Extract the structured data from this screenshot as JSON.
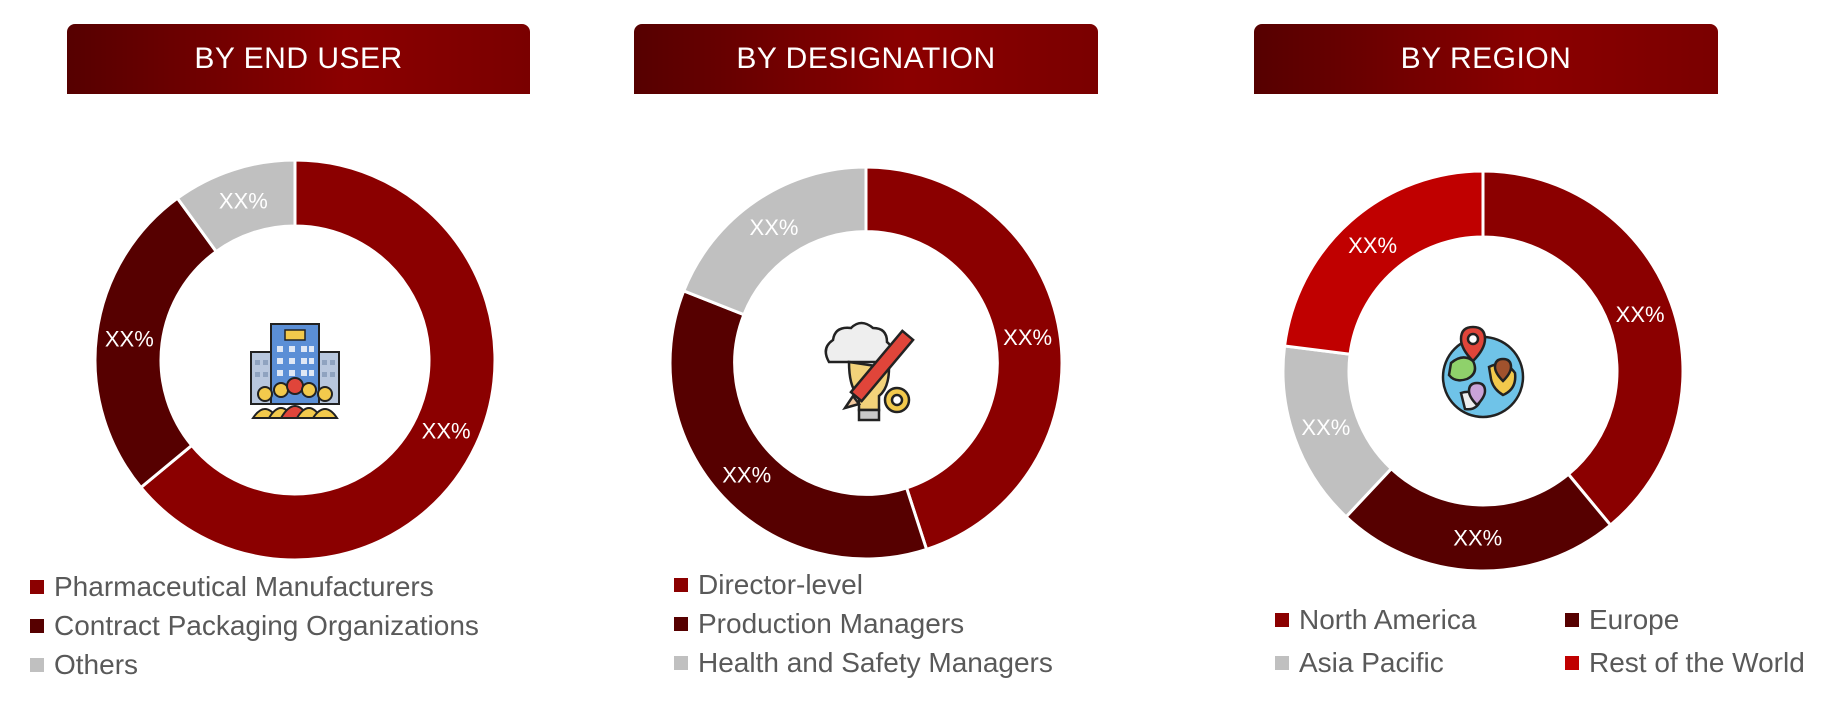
{
  "colors": {
    "red_dark": "#8b0000",
    "maroon": "#560000",
    "gray": "#c0c0c0",
    "red_bright": "#c00000"
  },
  "chart_data": [
    {
      "type": "pie",
      "title": "BY END USER",
      "icon": "office-building-people-icon",
      "segments": [
        {
          "name": "Pharmaceutical Manufacturers",
          "value": 64,
          "label": "XX%",
          "color": "#8b0000"
        },
        {
          "name": "Contract Packaging Organizations",
          "value": 26,
          "label": "XX%",
          "color": "#560000"
        },
        {
          "name": "Others",
          "value": 10,
          "label": "XX%",
          "color": "#c0c0c0"
        }
      ]
    },
    {
      "type": "pie",
      "title": "BY DESIGNATION",
      "icon": "lightbulb-brain-pencil-gear-icon",
      "segments": [
        {
          "name": "Director-level",
          "value": 45,
          "label": "XX%",
          "color": "#8b0000"
        },
        {
          "name": "Production Managers",
          "value": 36,
          "label": "XX%",
          "color": "#560000"
        },
        {
          "name": "Health and Safety Managers",
          "value": 19,
          "label": "XX%",
          "color": "#c0c0c0"
        }
      ]
    },
    {
      "type": "pie",
      "title": "BY REGION",
      "icon": "globe-location-pins-icon",
      "segments": [
        {
          "name": "North America",
          "value": 39,
          "label": "XX%",
          "color": "#8b0000"
        },
        {
          "name": "Europe",
          "value": 23,
          "label": "XX%",
          "color": "#560000"
        },
        {
          "name": "Asia Pacific",
          "value": 15,
          "label": "XX%",
          "color": "#c0c0c0"
        },
        {
          "name": "Rest of the World",
          "value": 23,
          "label": "XX%",
          "color": "#c00000"
        }
      ]
    }
  ]
}
